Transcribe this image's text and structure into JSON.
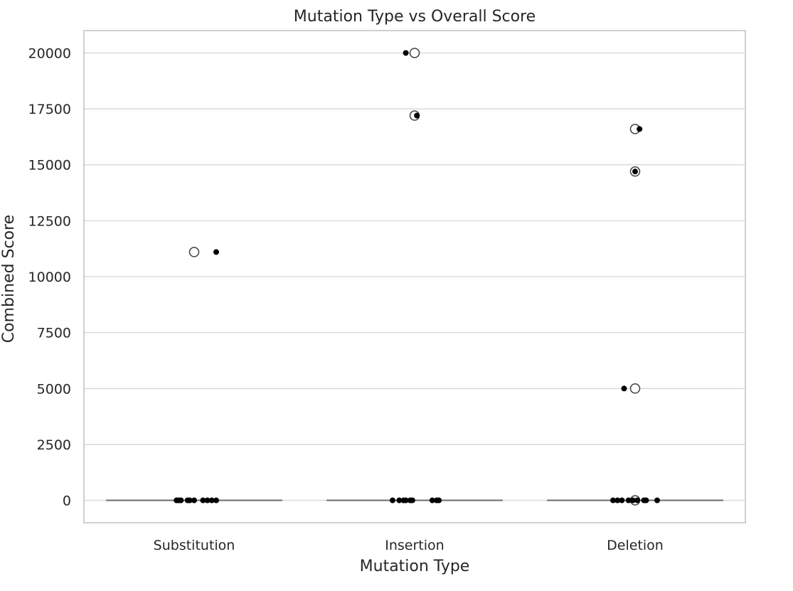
{
  "chart_data": {
    "type": "box",
    "title": "Mutation Type vs Overall Score",
    "xlabel": "Mutation Type",
    "ylabel": "Combined Score",
    "categories": [
      "Substitution",
      "Insertion",
      "Deletion"
    ],
    "ylim": [
      -1000,
      21000
    ],
    "yticks": [
      0,
      2500,
      5000,
      7500,
      10000,
      12500,
      15000,
      17500,
      20000
    ],
    "grid": true,
    "legend": "none",
    "boxes": [
      {
        "category": "Substitution",
        "q1": 0,
        "median": 0,
        "q3": 0,
        "whisker_low": 0,
        "whisker_high": 0,
        "outliers": [
          11100
        ]
      },
      {
        "category": "Insertion",
        "q1": 0,
        "median": 0,
        "q3": 0,
        "whisker_low": 0,
        "whisker_high": 0,
        "outliers": [
          20000,
          17200
        ]
      },
      {
        "category": "Deletion",
        "q1": 0,
        "median": 0,
        "q3": 0,
        "whisker_low": 0,
        "whisker_high": 0,
        "outliers": [
          16600,
          14700,
          5000,
          0
        ]
      }
    ],
    "strip_points": [
      {
        "category": "Substitution",
        "x_offset": 0.1,
        "y": 11100
      },
      {
        "category": "Substitution",
        "x_offset": -0.08,
        "y": 0
      },
      {
        "category": "Substitution",
        "x_offset": -0.07,
        "y": 0
      },
      {
        "category": "Substitution",
        "x_offset": -0.06,
        "y": 0
      },
      {
        "category": "Substitution",
        "x_offset": -0.03,
        "y": 0
      },
      {
        "category": "Substitution",
        "x_offset": -0.02,
        "y": 0
      },
      {
        "category": "Substitution",
        "x_offset": 0.0,
        "y": 0
      },
      {
        "category": "Substitution",
        "x_offset": 0.04,
        "y": 0
      },
      {
        "category": "Substitution",
        "x_offset": 0.06,
        "y": 0
      },
      {
        "category": "Substitution",
        "x_offset": 0.08,
        "y": 0
      },
      {
        "category": "Substitution",
        "x_offset": 0.1,
        "y": 0
      },
      {
        "category": "Insertion",
        "x_offset": -0.04,
        "y": 20000
      },
      {
        "category": "Insertion",
        "x_offset": 0.01,
        "y": 17200
      },
      {
        "category": "Insertion",
        "x_offset": -0.1,
        "y": 0
      },
      {
        "category": "Insertion",
        "x_offset": -0.07,
        "y": 0
      },
      {
        "category": "Insertion",
        "x_offset": -0.05,
        "y": 0
      },
      {
        "category": "Insertion",
        "x_offset": -0.04,
        "y": 0
      },
      {
        "category": "Insertion",
        "x_offset": -0.02,
        "y": 0
      },
      {
        "category": "Insertion",
        "x_offset": -0.01,
        "y": 0
      },
      {
        "category": "Insertion",
        "x_offset": 0.08,
        "y": 0
      },
      {
        "category": "Insertion",
        "x_offset": 0.1,
        "y": 0
      },
      {
        "category": "Insertion",
        "x_offset": 0.11,
        "y": 0
      },
      {
        "category": "Deletion",
        "x_offset": 0.02,
        "y": 16600
      },
      {
        "category": "Deletion",
        "x_offset": 0.0,
        "y": 14700
      },
      {
        "category": "Deletion",
        "x_offset": -0.05,
        "y": 5000
      },
      {
        "category": "Deletion",
        "x_offset": -0.1,
        "y": 0
      },
      {
        "category": "Deletion",
        "x_offset": -0.08,
        "y": 0
      },
      {
        "category": "Deletion",
        "x_offset": -0.06,
        "y": 0
      },
      {
        "category": "Deletion",
        "x_offset": -0.03,
        "y": 0
      },
      {
        "category": "Deletion",
        "x_offset": -0.01,
        "y": 0
      },
      {
        "category": "Deletion",
        "x_offset": 0.01,
        "y": 0
      },
      {
        "category": "Deletion",
        "x_offset": 0.04,
        "y": 0
      },
      {
        "category": "Deletion",
        "x_offset": 0.05,
        "y": 0
      },
      {
        "category": "Deletion",
        "x_offset": 0.1,
        "y": 0
      }
    ]
  }
}
